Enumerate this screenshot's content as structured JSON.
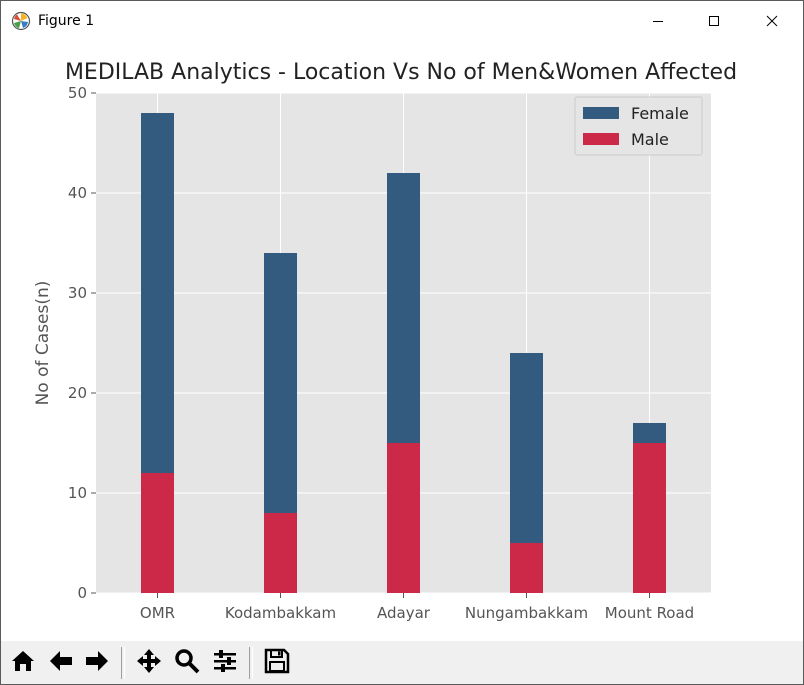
{
  "window": {
    "title": "Figure 1",
    "icons": {
      "app": "matplotlib-figure-icon",
      "minimize": "minimize-icon",
      "maximize": "maximize-icon",
      "close": "close-icon"
    }
  },
  "toolbar": {
    "buttons": [
      {
        "name": "home-button",
        "icon": "home-icon"
      },
      {
        "name": "back-button",
        "icon": "arrow-left-icon"
      },
      {
        "name": "forward-button",
        "icon": "arrow-right-icon"
      },
      {
        "name": "pan-button",
        "icon": "move-icon"
      },
      {
        "name": "zoom-button",
        "icon": "magnifier-icon"
      },
      {
        "name": "configure-subplots-button",
        "icon": "sliders-icon"
      },
      {
        "name": "save-button",
        "icon": "floppy-disk-icon"
      }
    ]
  },
  "chart_data": {
    "type": "bar",
    "stacked": true,
    "title": "MEDILAB Analytics - Location Vs No of Men&Women Affected",
    "xlabel": "",
    "ylabel": "No of Cases(n)",
    "categories": [
      "OMR",
      "Kodambakkam",
      "Adayar",
      "Nungambakkam",
      "Mount Road"
    ],
    "series": [
      {
        "name": "Male",
        "values": [
          12,
          8,
          15,
          5,
          15
        ],
        "color": "#cc2847"
      },
      {
        "name": "Female",
        "values": [
          36,
          26,
          27,
          19,
          2
        ],
        "color": "#335b80"
      }
    ],
    "ylim": [
      0,
      50
    ],
    "yticks": [
      0,
      10,
      20,
      30,
      40,
      50
    ],
    "grid": true,
    "legend": {
      "position": "top-right",
      "order": [
        "Female",
        "Male"
      ]
    },
    "style": {
      "axes_bg": "#e5e5e5",
      "grid_color": "#ffffff",
      "tick_color": "#555555"
    }
  }
}
